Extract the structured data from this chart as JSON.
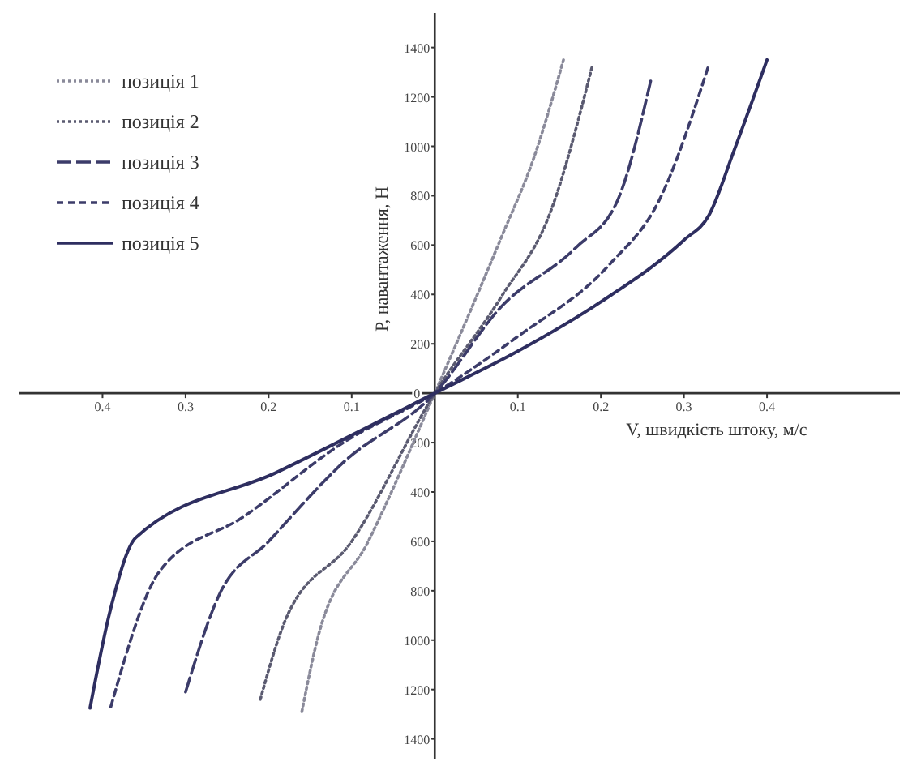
{
  "chart_data": {
    "type": "line",
    "xlabel": "V, швидкість штоку, м/с",
    "ylabel": "P, навантаження, Н",
    "xlim": [
      -0.5,
      0.56
    ],
    "ylim": [
      -1480,
      1540
    ],
    "xticks": [
      {
        "value": -0.4,
        "label": "0.4"
      },
      {
        "value": -0.3,
        "label": "0.3"
      },
      {
        "value": -0.2,
        "label": "0.2"
      },
      {
        "value": -0.1,
        "label": "0.1"
      },
      0.1,
      0.2,
      0.3,
      0.4
    ],
    "yticks": [
      {
        "value": -1400,
        "label": "1400"
      },
      {
        "value": -1200,
        "label": "1200"
      },
      {
        "value": -1000,
        "label": "1000"
      },
      {
        "value": -800,
        "label": "800"
      },
      {
        "value": -600,
        "label": "600"
      },
      {
        "value": -400,
        "label": "400"
      },
      {
        "value": -200,
        "label": "200"
      },
      0,
      200,
      400,
      600,
      800,
      1000,
      1200,
      1400
    ],
    "legend": "top left",
    "grid": false,
    "series": [
      {
        "name": "позиція 1",
        "color": "#8a8a9a",
        "line_style": "dotted",
        "x": [
          -0.16,
          -0.14,
          -0.08,
          0,
          0.08,
          0.12,
          0.155
        ],
        "values": [
          -1290,
          -980,
          -600,
          0,
          630,
          960,
          1350
        ]
      },
      {
        "name": "позиція 2",
        "color": "#5a5a70",
        "line_style": "dotted",
        "x": [
          -0.21,
          -0.18,
          -0.1,
          0,
          0.08,
          0.14,
          0.19
        ],
        "values": [
          -1240,
          -920,
          -600,
          0,
          390,
          740,
          1330
        ]
      },
      {
        "name": "позиція 3",
        "color": "#3c3c6a",
        "line_style": "longdash",
        "x": [
          -0.3,
          -0.26,
          -0.2,
          -0.11,
          0,
          0.08,
          0.17,
          0.22,
          0.26
        ],
        "values": [
          -1210,
          -820,
          -600,
          -280,
          0,
          350,
          590,
          780,
          1265
        ]
      },
      {
        "name": "позиція 4",
        "color": "#3c3c6a",
        "line_style": "dashed",
        "x": [
          -0.39,
          -0.33,
          -0.23,
          -0.11,
          0,
          0.1,
          0.21,
          0.27,
          0.33
        ],
        "values": [
          -1270,
          -715,
          -500,
          -200,
          0,
          230,
          520,
          780,
          1330
        ]
      },
      {
        "name": "позиція 5",
        "color": "#2e2e60",
        "line_style": "solid",
        "x": [
          -0.415,
          -0.39,
          -0.36,
          -0.19,
          0,
          0.1,
          0.2,
          0.3,
          0.33,
          0.36,
          0.4
        ],
        "values": [
          -1275,
          -870,
          -585,
          -320,
          0,
          170,
          370,
          620,
          720,
          980,
          1350
        ]
      }
    ]
  }
}
